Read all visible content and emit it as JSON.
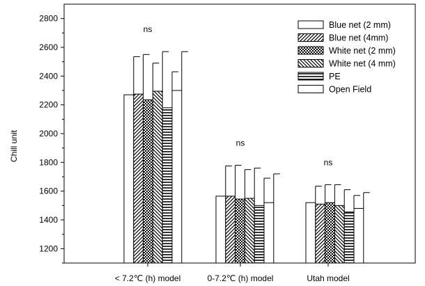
{
  "chart_data": {
    "type": "bar",
    "ylabel": "Chill unit",
    "ylim": [
      1100,
      2900
    ],
    "yticks": [
      1200,
      1400,
      1600,
      1800,
      2000,
      2200,
      2400,
      2600,
      2800
    ],
    "categories": [
      "< 7.2℃ (h) model",
      "0-7.2℃ (h) model",
      "Utah model"
    ],
    "annotations": [
      "ns",
      "ns",
      "ns"
    ],
    "legend_position": "top-right",
    "series": [
      {
        "name": "Blue net (2 mm)",
        "pattern": "empty",
        "values": [
          2270,
          1565,
          1520
        ],
        "errors": [
          265,
          210,
          115
        ]
      },
      {
        "name": "Blue net (4mm)",
        "pattern": "diag-right",
        "values": [
          2275,
          1565,
          1510
        ],
        "errors": [
          275,
          215,
          135
        ]
      },
      {
        "name": "White net (2 mm)",
        "pattern": "crosshatch",
        "values": [
          2235,
          1545,
          1520
        ],
        "errors": [
          255,
          205,
          125
        ]
      },
      {
        "name": "White net (4 mm)",
        "pattern": "diag-left",
        "values": [
          2295,
          1550,
          1500
        ],
        "errors": [
          275,
          210,
          110
        ]
      },
      {
        "name": "PE",
        "pattern": "horizontal",
        "values": [
          2180,
          1500,
          1455
        ],
        "errors": [
          250,
          190,
          115
        ]
      },
      {
        "name": "Open Field",
        "pattern": "empty",
        "values": [
          2300,
          1520,
          1480
        ],
        "errors": [
          270,
          200,
          110
        ]
      }
    ],
    "colors": {
      "stroke": "#000000",
      "fill": "#ffffff"
    }
  }
}
